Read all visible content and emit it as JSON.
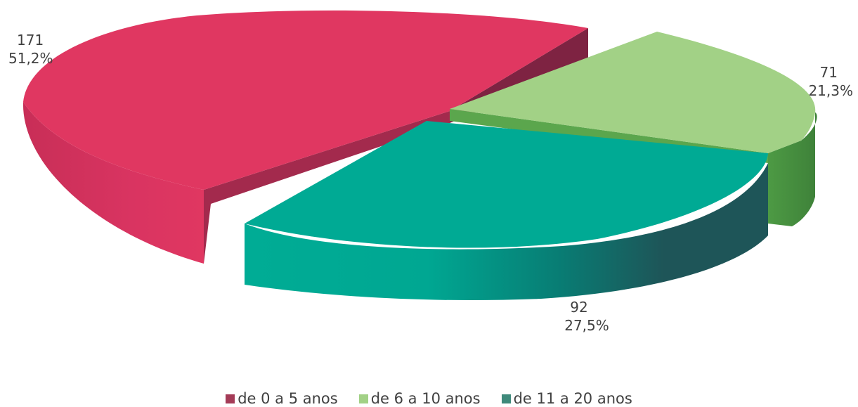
{
  "chart_data": {
    "type": "pie",
    "title": "",
    "categories": [
      "de 0 a 5 anos",
      "de 6 a 10 anos",
      "de 11 a 20 anos"
    ],
    "values": [
      171,
      71,
      92
    ],
    "percent_labels": [
      "51,2%",
      "21,3%",
      "27,5%"
    ],
    "value_labels": [
      "171",
      "71",
      "92"
    ],
    "legend_position": "bottom",
    "style": "3d-exploded",
    "colors": {
      "top": [
        "#E03761",
        "#A2D186",
        "#00AA94"
      ],
      "side_light": [
        "#C12D56",
        "#5BA64D",
        "#00A792"
      ],
      "side_dark": [
        "#7E2342",
        "#3B7A3A",
        "#1E5558"
      ],
      "legend": [
        "#A43B57",
        "#A2D186",
        "#3F8A7B"
      ]
    }
  }
}
